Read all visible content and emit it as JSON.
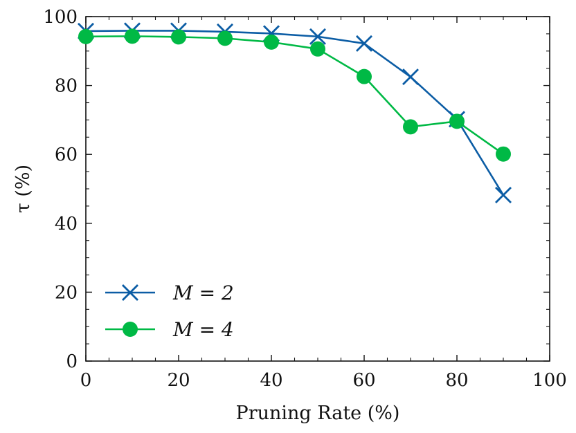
{
  "chart_data": {
    "type": "line",
    "title": "",
    "xlabel": "Pruning Rate (%)",
    "ylabel": "τ (%)",
    "xlim": [
      0,
      100
    ],
    "ylim": [
      0,
      100
    ],
    "xticks": [
      "0",
      "20",
      "40",
      "60",
      "80",
      "100"
    ],
    "yticks": [
      "0",
      "20",
      "40",
      "60",
      "80",
      "100"
    ],
    "x": [
      0,
      10,
      20,
      30,
      40,
      50,
      60,
      70,
      80,
      90
    ],
    "series": [
      {
        "name": "M = 2",
        "legend_label": "M = 2",
        "marker": "x",
        "color": "#0C5DA5",
        "values": [
          95.8,
          95.9,
          95.9,
          95.6,
          95.1,
          94.2,
          92.2,
          82.5,
          70.2,
          48.2
        ]
      },
      {
        "name": "M = 4",
        "legend_label": "M = 4",
        "marker": "o",
        "color": "#00B945",
        "values": [
          94.2,
          94.3,
          94.1,
          93.7,
          92.6,
          90.6,
          82.6,
          68.0,
          69.6,
          60.1
        ]
      }
    ],
    "legend_position": "lower-left",
    "grid": false
  }
}
